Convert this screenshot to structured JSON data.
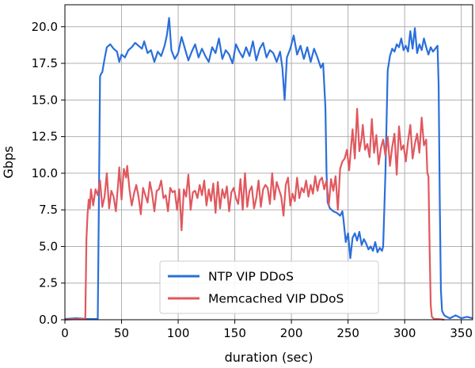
{
  "chart_data": {
    "type": "line",
    "xlabel": "duration (sec)",
    "ylabel": "Gbps",
    "xlim": [
      0,
      360
    ],
    "ylim": [
      0,
      21.5
    ],
    "xticks": [
      0,
      50,
      100,
      150,
      200,
      250,
      300,
      350
    ],
    "yticks": [
      0.0,
      2.5,
      5.0,
      7.5,
      10.0,
      12.5,
      15.0,
      17.5,
      20.0
    ],
    "xtick_labels": [
      "0",
      "50",
      "100",
      "150",
      "200",
      "250",
      "300",
      "350"
    ],
    "ytick_labels": [
      "0.0",
      "2.5",
      "5.0",
      "7.5",
      "10.0",
      "12.5",
      "15.0",
      "17.5",
      "20.0"
    ],
    "grid": true,
    "legend_position": "bottom-center",
    "series": [
      {
        "name": "NTP VIP DDoS",
        "color": "#2a6fdb",
        "points": [
          [
            0,
            0.05
          ],
          [
            10,
            0.1
          ],
          [
            20,
            0.05
          ],
          [
            29,
            0.05
          ],
          [
            30,
            8.0
          ],
          [
            31,
            16.6
          ],
          [
            32,
            16.8
          ],
          [
            33,
            16.9
          ],
          [
            35,
            17.8
          ],
          [
            37,
            18.6
          ],
          [
            40,
            18.8
          ],
          [
            43,
            18.5
          ],
          [
            46,
            18.3
          ],
          [
            48,
            17.6
          ],
          [
            50,
            18.1
          ],
          [
            53,
            17.9
          ],
          [
            56,
            18.4
          ],
          [
            59,
            18.6
          ],
          [
            62,
            18.9
          ],
          [
            65,
            18.7
          ],
          [
            68,
            18.5
          ],
          [
            70,
            19.0
          ],
          [
            73,
            18.2
          ],
          [
            76,
            18.4
          ],
          [
            79,
            17.6
          ],
          [
            82,
            18.3
          ],
          [
            85,
            18.0
          ],
          [
            88,
            18.7
          ],
          [
            90,
            19.4
          ],
          [
            92,
            20.6
          ],
          [
            94,
            18.4
          ],
          [
            97,
            17.8
          ],
          [
            100,
            18.2
          ],
          [
            103,
            19.3
          ],
          [
            106,
            18.5
          ],
          [
            109,
            17.7
          ],
          [
            112,
            18.3
          ],
          [
            115,
            18.8
          ],
          [
            118,
            17.9
          ],
          [
            121,
            18.5
          ],
          [
            124,
            18.0
          ],
          [
            127,
            17.6
          ],
          [
            130,
            18.6
          ],
          [
            133,
            18.2
          ],
          [
            136,
            19.2
          ],
          [
            139,
            17.8
          ],
          [
            142,
            18.4
          ],
          [
            145,
            18.1
          ],
          [
            148,
            17.5
          ],
          [
            151,
            18.8
          ],
          [
            154,
            18.3
          ],
          [
            157,
            17.9
          ],
          [
            160,
            18.6
          ],
          [
            163,
            18.0
          ],
          [
            166,
            19.0
          ],
          [
            169,
            17.7
          ],
          [
            172,
            18.5
          ],
          [
            175,
            18.9
          ],
          [
            178,
            17.9
          ],
          [
            181,
            18.4
          ],
          [
            184,
            18.2
          ],
          [
            187,
            17.6
          ],
          [
            190,
            18.3
          ],
          [
            192,
            17.2
          ],
          [
            194,
            15.0
          ],
          [
            196,
            17.9
          ],
          [
            199,
            18.5
          ],
          [
            202,
            19.4
          ],
          [
            205,
            18.1
          ],
          [
            208,
            18.7
          ],
          [
            211,
            17.8
          ],
          [
            214,
            18.6
          ],
          [
            217,
            17.6
          ],
          [
            220,
            18.5
          ],
          [
            223,
            17.9
          ],
          [
            226,
            17.2
          ],
          [
            228,
            17.5
          ],
          [
            230,
            14.5
          ],
          [
            231,
            10.0
          ],
          [
            232,
            8.0
          ],
          [
            234,
            7.6
          ],
          [
            237,
            7.4
          ],
          [
            240,
            7.3
          ],
          [
            243,
            7.1
          ],
          [
            245,
            7.4
          ],
          [
            246,
            6.8
          ],
          [
            248,
            5.3
          ],
          [
            250,
            5.9
          ],
          [
            252,
            4.2
          ],
          [
            254,
            5.6
          ],
          [
            256,
            5.9
          ],
          [
            258,
            5.4
          ],
          [
            260,
            6.0
          ],
          [
            262,
            5.1
          ],
          [
            264,
            5.5
          ],
          [
            266,
            5.2
          ],
          [
            268,
            4.8
          ],
          [
            270,
            5.0
          ],
          [
            272,
            4.7
          ],
          [
            274,
            5.3
          ],
          [
            276,
            4.6
          ],
          [
            278,
            4.9
          ],
          [
            280,
            4.7
          ],
          [
            281,
            5.0
          ],
          [
            283,
            10.0
          ],
          [
            285,
            17.0
          ],
          [
            287,
            18.0
          ],
          [
            289,
            18.5
          ],
          [
            291,
            18.3
          ],
          [
            293,
            18.8
          ],
          [
            295,
            18.6
          ],
          [
            297,
            19.2
          ],
          [
            299,
            18.4
          ],
          [
            301,
            18.7
          ],
          [
            303,
            18.3
          ],
          [
            305,
            19.7
          ],
          [
            307,
            18.5
          ],
          [
            309,
            19.9
          ],
          [
            311,
            18.2
          ],
          [
            313,
            18.8
          ],
          [
            315,
            18.4
          ],
          [
            317,
            19.2
          ],
          [
            319,
            18.6
          ],
          [
            321,
            18.1
          ],
          [
            323,
            18.6
          ],
          [
            325,
            18.3
          ],
          [
            327,
            18.5
          ],
          [
            329,
            18.7
          ],
          [
            330,
            16.0
          ],
          [
            331,
            8.0
          ],
          [
            332,
            2.0
          ],
          [
            333,
            0.6
          ],
          [
            335,
            0.3
          ],
          [
            337,
            0.2
          ],
          [
            340,
            0.1
          ],
          [
            345,
            0.3
          ],
          [
            350,
            0.1
          ],
          [
            355,
            0.2
          ],
          [
            360,
            0.1
          ]
        ]
      },
      {
        "name": "Memcached VIP DDoS",
        "color": "#e0585e",
        "points": [
          [
            0,
            0.0
          ],
          [
            10,
            0.05
          ],
          [
            18,
            0.05
          ],
          [
            19,
            5.5
          ],
          [
            20,
            7.2
          ],
          [
            21,
            8.2
          ],
          [
            22,
            7.6
          ],
          [
            23,
            8.9
          ],
          [
            25,
            7.8
          ],
          [
            27,
            8.9
          ],
          [
            29,
            8.5
          ],
          [
            31,
            9.5
          ],
          [
            33,
            7.7
          ],
          [
            35,
            8.4
          ],
          [
            37,
            10.0
          ],
          [
            39,
            7.6
          ],
          [
            41,
            8.8
          ],
          [
            43,
            8.4
          ],
          [
            45,
            7.4
          ],
          [
            47,
            9.3
          ],
          [
            48,
            10.4
          ],
          [
            50,
            8.2
          ],
          [
            52,
            10.3
          ],
          [
            54,
            9.7
          ],
          [
            55,
            10.5
          ],
          [
            57,
            8.9
          ],
          [
            59,
            7.8
          ],
          [
            61,
            8.6
          ],
          [
            63,
            9.2
          ],
          [
            65,
            8.4
          ],
          [
            67,
            7.2
          ],
          [
            69,
            9.0
          ],
          [
            71,
            8.5
          ],
          [
            73,
            8.0
          ],
          [
            75,
            9.4
          ],
          [
            77,
            8.6
          ],
          [
            79,
            7.4
          ],
          [
            81,
            8.8
          ],
          [
            83,
            8.9
          ],
          [
            85,
            9.5
          ],
          [
            87,
            8.3
          ],
          [
            89,
            8.5
          ],
          [
            91,
            7.4
          ],
          [
            93,
            9.0
          ],
          [
            95,
            8.7
          ],
          [
            97,
            8.8
          ],
          [
            99,
            7.5
          ],
          [
            101,
            8.9
          ],
          [
            103,
            6.1
          ],
          [
            105,
            8.9
          ],
          [
            107,
            8.4
          ],
          [
            109,
            9.9
          ],
          [
            111,
            7.5
          ],
          [
            113,
            8.7
          ],
          [
            115,
            8.8
          ],
          [
            117,
            8.3
          ],
          [
            119,
            9.2
          ],
          [
            121,
            8.5
          ],
          [
            123,
            9.5
          ],
          [
            125,
            7.8
          ],
          [
            127,
            8.9
          ],
          [
            129,
            8.1
          ],
          [
            131,
            9.3
          ],
          [
            133,
            7.3
          ],
          [
            135,
            9.4
          ],
          [
            137,
            7.6
          ],
          [
            139,
            8.9
          ],
          [
            141,
            8.3
          ],
          [
            143,
            9.1
          ],
          [
            145,
            7.4
          ],
          [
            147,
            8.7
          ],
          [
            149,
            9.0
          ],
          [
            151,
            8.3
          ],
          [
            153,
            7.9
          ],
          [
            155,
            9.6
          ],
          [
            157,
            7.5
          ],
          [
            159,
            10.0
          ],
          [
            161,
            7.7
          ],
          [
            163,
            8.8
          ],
          [
            165,
            9.1
          ],
          [
            167,
            7.6
          ],
          [
            169,
            8.3
          ],
          [
            171,
            9.5
          ],
          [
            173,
            7.7
          ],
          [
            175,
            8.9
          ],
          [
            177,
            9.2
          ],
          [
            179,
            9.0
          ],
          [
            181,
            7.9
          ],
          [
            183,
            10.0
          ],
          [
            185,
            8.2
          ],
          [
            187,
            9.4
          ],
          [
            189,
            8.9
          ],
          [
            191,
            8.4
          ],
          [
            193,
            7.1
          ],
          [
            195,
            9.2
          ],
          [
            197,
            9.7
          ],
          [
            199,
            7.8
          ],
          [
            201,
            8.6
          ],
          [
            203,
            8.1
          ],
          [
            205,
            9.7
          ],
          [
            207,
            8.3
          ],
          [
            209,
            9.0
          ],
          [
            211,
            8.7
          ],
          [
            213,
            9.5
          ],
          [
            215,
            8.4
          ],
          [
            217,
            9.2
          ],
          [
            219,
            8.6
          ],
          [
            221,
            9.8
          ],
          [
            223,
            8.8
          ],
          [
            225,
            9.5
          ],
          [
            227,
            9.7
          ],
          [
            229,
            8.9
          ],
          [
            231,
            9.5
          ],
          [
            233,
            7.8
          ],
          [
            235,
            9.6
          ],
          [
            237,
            8.8
          ],
          [
            239,
            9.8
          ],
          [
            241,
            7.5
          ],
          [
            243,
            10.3
          ],
          [
            245,
            10.8
          ],
          [
            247,
            11.0
          ],
          [
            249,
            11.6
          ],
          [
            251,
            10.2
          ],
          [
            253,
            12.1
          ],
          [
            254,
            13.0
          ],
          [
            256,
            11.0
          ],
          [
            258,
            14.4
          ],
          [
            260,
            11.5
          ],
          [
            262,
            12.4
          ],
          [
            263,
            13.3
          ],
          [
            265,
            11.6
          ],
          [
            267,
            12.0
          ],
          [
            269,
            11.1
          ],
          [
            271,
            13.7
          ],
          [
            273,
            11.4
          ],
          [
            275,
            12.6
          ],
          [
            277,
            10.6
          ],
          [
            279,
            11.7
          ],
          [
            281,
            12.3
          ],
          [
            283,
            11.2
          ],
          [
            285,
            12.5
          ],
          [
            287,
            10.5
          ],
          [
            289,
            11.8
          ],
          [
            291,
            12.7
          ],
          [
            293,
            9.9
          ],
          [
            295,
            13.2
          ],
          [
            297,
            11.6
          ],
          [
            299,
            11.9
          ],
          [
            301,
            10.8
          ],
          [
            303,
            12.2
          ],
          [
            305,
            13.3
          ],
          [
            307,
            11.0
          ],
          [
            309,
            12.0
          ],
          [
            311,
            12.7
          ],
          [
            313,
            11.4
          ],
          [
            315,
            13.8
          ],
          [
            317,
            11.9
          ],
          [
            319,
            12.3
          ],
          [
            320,
            10.0
          ],
          [
            321,
            9.8
          ],
          [
            322,
            5.0
          ],
          [
            323,
            1.0
          ],
          [
            324,
            0.2
          ],
          [
            326,
            0.05
          ],
          [
            330,
            0.05
          ],
          [
            335,
            0.0
          ]
        ]
      }
    ]
  }
}
